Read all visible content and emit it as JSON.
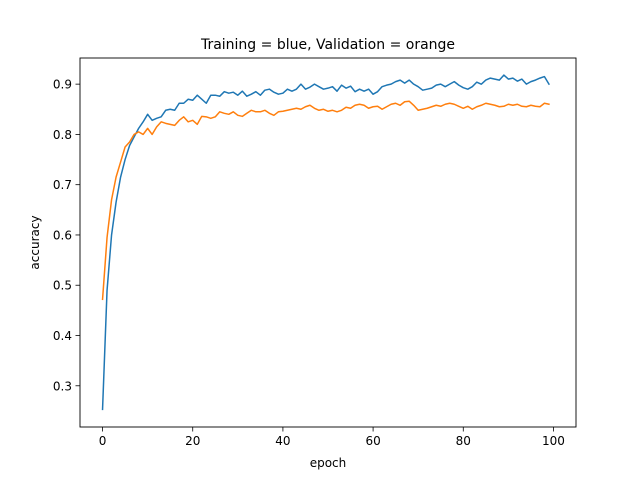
{
  "chart_data": {
    "type": "line",
    "title": "Training = blue, Validation = orange",
    "xlabel": "epoch",
    "ylabel": "accuracy",
    "xlim": [
      -5,
      105
    ],
    "ylim": [
      0.218,
      0.952
    ],
    "xticks": [
      0,
      20,
      40,
      60,
      80,
      100
    ],
    "yticks": [
      0.3,
      0.4,
      0.5,
      0.6,
      0.7,
      0.8,
      0.9
    ],
    "xtick_labels": [
      "0",
      "20",
      "40",
      "60",
      "80",
      "100"
    ],
    "ytick_labels": [
      "0.3",
      "0.4",
      "0.5",
      "0.6",
      "0.7",
      "0.8",
      "0.9"
    ],
    "grid": false,
    "legend": "none",
    "series": [
      {
        "color": "#1f77b4",
        "values": [
          0.253,
          0.49,
          0.6,
          0.665,
          0.715,
          0.75,
          0.778,
          0.795,
          0.812,
          0.825,
          0.84,
          0.828,
          0.832,
          0.835,
          0.848,
          0.85,
          0.848,
          0.862,
          0.862,
          0.87,
          0.868,
          0.878,
          0.87,
          0.862,
          0.878,
          0.878,
          0.876,
          0.885,
          0.882,
          0.884,
          0.878,
          0.886,
          0.876,
          0.88,
          0.885,
          0.878,
          0.888,
          0.89,
          0.884,
          0.88,
          0.882,
          0.89,
          0.886,
          0.89,
          0.9,
          0.89,
          0.894,
          0.9,
          0.895,
          0.89,
          0.892,
          0.895,
          0.886,
          0.898,
          0.892,
          0.896,
          0.885,
          0.89,
          0.886,
          0.89,
          0.88,
          0.885,
          0.895,
          0.898,
          0.9,
          0.905,
          0.908,
          0.902,
          0.908,
          0.9,
          0.895,
          0.888,
          0.89,
          0.892,
          0.898,
          0.9,
          0.895,
          0.9,
          0.905,
          0.898,
          0.893,
          0.89,
          0.895,
          0.904,
          0.9,
          0.908,
          0.912,
          0.91,
          0.908,
          0.918,
          0.91,
          0.912,
          0.906,
          0.91,
          0.9,
          0.905,
          0.908,
          0.912,
          0.915,
          0.9
        ]
      },
      {
        "color": "#ff7f0e",
        "values": [
          0.472,
          0.595,
          0.67,
          0.715,
          0.745,
          0.775,
          0.785,
          0.8,
          0.805,
          0.8,
          0.812,
          0.8,
          0.815,
          0.825,
          0.822,
          0.82,
          0.818,
          0.828,
          0.835,
          0.825,
          0.828,
          0.82,
          0.836,
          0.835,
          0.832,
          0.835,
          0.845,
          0.842,
          0.84,
          0.845,
          0.838,
          0.836,
          0.842,
          0.848,
          0.845,
          0.845,
          0.848,
          0.842,
          0.838,
          0.845,
          0.846,
          0.848,
          0.85,
          0.852,
          0.85,
          0.855,
          0.858,
          0.852,
          0.848,
          0.85,
          0.846,
          0.848,
          0.845,
          0.848,
          0.854,
          0.852,
          0.858,
          0.86,
          0.858,
          0.852,
          0.855,
          0.856,
          0.85,
          0.855,
          0.86,
          0.862,
          0.858,
          0.865,
          0.866,
          0.858,
          0.848,
          0.85,
          0.852,
          0.855,
          0.858,
          0.856,
          0.86,
          0.862,
          0.86,
          0.856,
          0.852,
          0.856,
          0.85,
          0.855,
          0.858,
          0.862,
          0.86,
          0.858,
          0.855,
          0.856,
          0.86,
          0.858,
          0.86,
          0.856,
          0.855,
          0.858,
          0.856,
          0.855,
          0.862,
          0.86
        ]
      }
    ]
  }
}
